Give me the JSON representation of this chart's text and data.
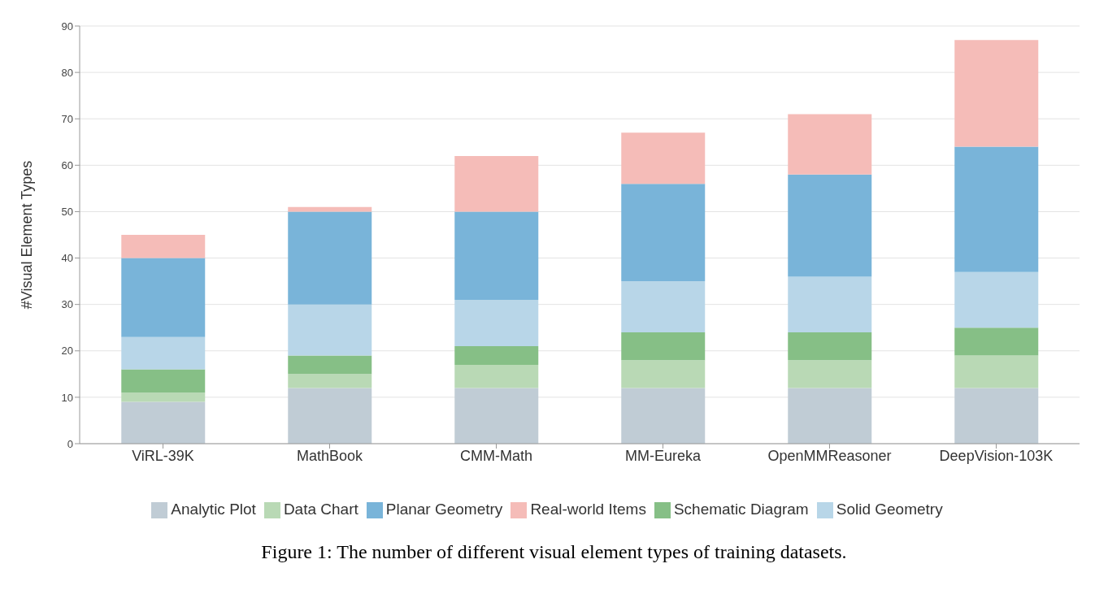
{
  "chart_data": {
    "type": "bar",
    "stacked": true,
    "ylabel": "#Visual Element Types",
    "categories": [
      "ViRL-39K",
      "MathBook",
      "CMM-Math",
      "MM-Eureka",
      "OpenMMReasoner",
      "DeepVision-103K"
    ],
    "series": [
      {
        "name": "Analytic Plot",
        "color": "#c0ccd5",
        "values": [
          9,
          12,
          12,
          12,
          12,
          12
        ]
      },
      {
        "name": "Data Chart",
        "color": "#b9d9b5",
        "values": [
          2,
          3,
          5,
          6,
          6,
          7
        ]
      },
      {
        "name": "Schematic Diagram",
        "color": "#86bf86",
        "values": [
          5,
          4,
          4,
          6,
          6,
          6
        ]
      },
      {
        "name": "Solid Geometry",
        "color": "#b8d6e8",
        "values": [
          7,
          11,
          10,
          11,
          12,
          12
        ]
      },
      {
        "name": "Planar Geometry",
        "color": "#79b4d9",
        "values": [
          17,
          20,
          19,
          21,
          22,
          27
        ]
      },
      {
        "name": "Real-world Items",
        "color": "#f5bcb8",
        "values": [
          5,
          1,
          12,
          11,
          13,
          23
        ]
      }
    ],
    "ylim": [
      0,
      90
    ],
    "yticks": [
      0,
      10,
      20,
      30,
      40,
      50,
      60,
      70,
      80,
      90
    ],
    "grid": "y",
    "legend": "bottom",
    "annotations": [
      "Figure 1: The number of different visual element types of training datasets."
    ]
  }
}
